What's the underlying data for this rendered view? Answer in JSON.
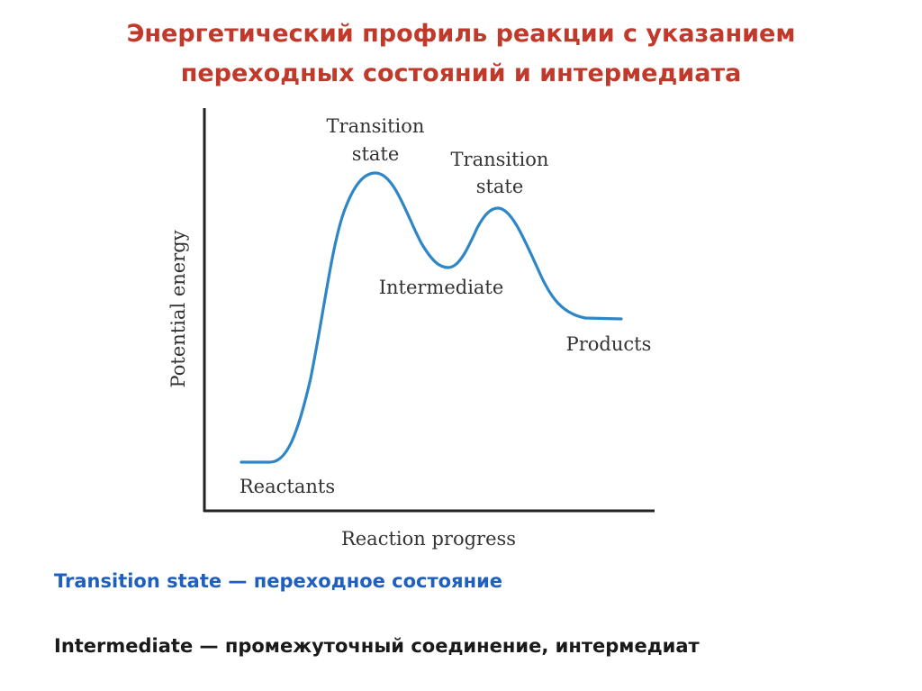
{
  "title": {
    "line1": "Энергетический профиль реакции с указанием",
    "line2": "переходных состояний и интермедиата"
  },
  "diagram": {
    "ylabel": "Potential energy",
    "xlabel": "Reaction progress",
    "labels": {
      "transition_state_1_line1": "Transition",
      "transition_state_1_line2": "state",
      "transition_state_2_line1": "Transition",
      "transition_state_2_line2": "state",
      "intermediate": "Intermediate",
      "reactants": "Reactants",
      "products": "Products"
    },
    "curve_color": "#2f86c6",
    "axis_color": "#222222"
  },
  "captions": {
    "line1": "Transition state — переходное состояние",
    "line2": "Intermediate — промежуточный соединение, интермедиат"
  }
}
